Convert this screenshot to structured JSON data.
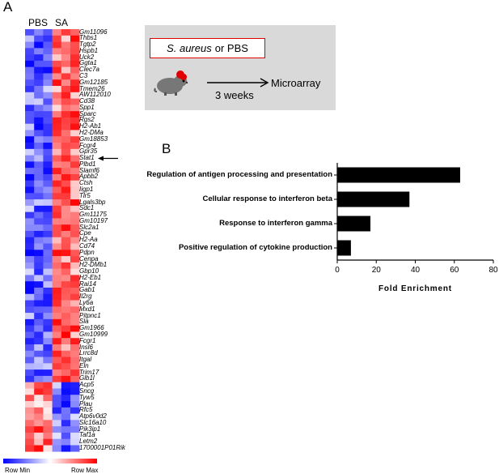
{
  "panel_a": {
    "letter": "A",
    "col_pbs": "PBS",
    "col_sa": "SA",
    "row_min": "Row Min",
    "row_max": "Row Max",
    "genes": [
      "Gm11096",
      "Thbs1",
      "Tgtp2",
      "Hspb1",
      "Uck2",
      "Ggta1",
      "Clec7a",
      "C3",
      "Gm12185",
      "Tmem26",
      "AW112010",
      "Cd38",
      "Spp1",
      "Sparc",
      "Rgs2",
      "H2-Ab1",
      "H2-DMa",
      "Gm18853",
      "Fcgr4",
      "Gpr35",
      "Stat1",
      "Plbd1",
      "Slamf6",
      "Apbb2",
      "Ctsh",
      "Iigp1",
      "Tlr5",
      "Lgals3bp",
      "Sdc1",
      "Gm11175",
      "Gm10197",
      "Slc2a1",
      "Cpe",
      "H2-Aa",
      "Cd74",
      "Pdpn",
      "Cenpa",
      "H2-DMb1",
      "Gbp10",
      "H2-Eb1",
      "Rai14",
      "Gab1",
      "Il2rg",
      "Ly6a",
      "Mxd1",
      "Pitpnc1",
      "Sla",
      "Gm1966",
      "Gm10999",
      "Fcgr1",
      "Insl6",
      "Lrrc8d",
      "Itgal",
      "Eln",
      "Trim17",
      "Glb1l",
      "Acp5",
      "Sncg",
      "Tyw5",
      "Plau",
      "Rfc5",
      "Atp6v0d2",
      "Slc16a10",
      "Pik3ip1",
      "Taf1a",
      "Letm2",
      "1700001P01Rik"
    ],
    "highlight_gene": "Stat1",
    "colors": {
      "min": "#0000ff",
      "mid": "#ffffff",
      "max": "#ff0000"
    }
  },
  "schematic": {
    "box_italic": "S. aureus",
    "box_rest": " or PBS",
    "arrow_target": "Microarray",
    "duration": "3 weeks",
    "icon": "mouse-icon"
  },
  "panel_b": {
    "letter": "B"
  },
  "chart_data": {
    "type": "bar",
    "orientation": "horizontal",
    "categories": [
      "Regulation of antigen processing and presentation",
      "Cellular response to interferon beta",
      "Response to interferon gamma",
      "Positive regulation of cytokine production"
    ],
    "values": [
      63,
      37,
      17,
      7
    ],
    "xlabel": "Fold Enrichment",
    "xlim": [
      0,
      80
    ],
    "xticks": [
      0,
      20,
      40,
      60,
      80
    ],
    "grid": false,
    "bar_color": "#000000"
  }
}
